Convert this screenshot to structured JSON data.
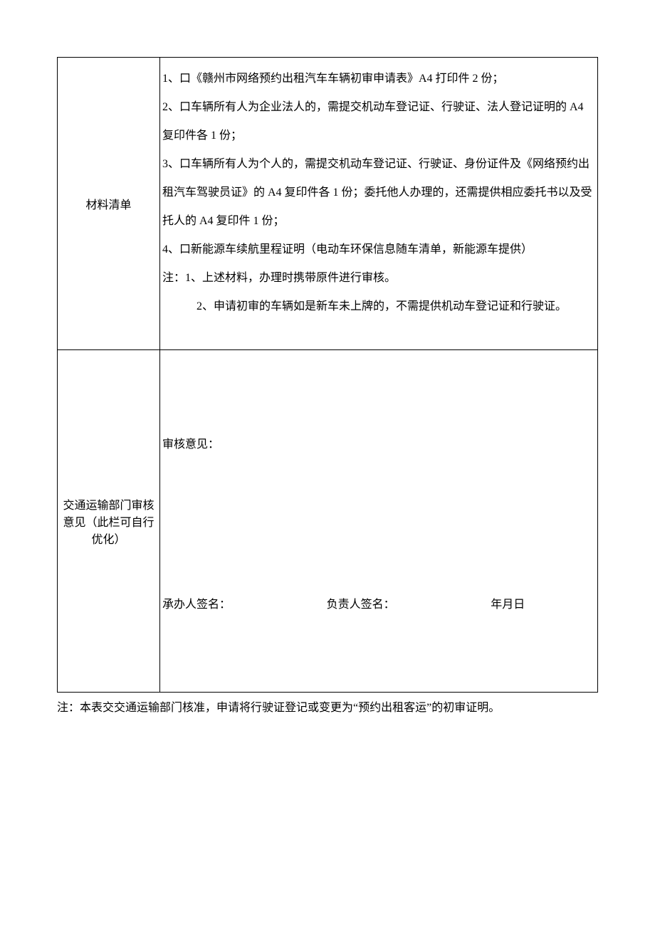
{
  "table": {
    "row1": {
      "label": "材料清单",
      "items": [
        "1、口《赣州市网络预约出租汽车车辆初审申请表》A4 打印件 2 份；",
        "2、口车辆所有人为企业法人的，需提交机动车登记证、行驶证、法人登记证明的 A4 复印件各 1 份；",
        "3、口车辆所有人为个人的，需提交机动车登记证、行驶证、身份证件及《网络预约出租汽车驾驶员证》的 A4 复印件各 1 份；委托他人办理的，还需提供相应委托书以及受托人的 A4 复印件 1 份；",
        "4、口新能源车续航里程证明（电动车环保信息随车清单，新能源车提供）"
      ],
      "note_prefix": "注：1、上述材料，办理时携带原件进行审核。",
      "note_line2": "2、申请初审的车辆如是新车未上牌的，不需提供机动车登记证和行驶证。"
    },
    "row2": {
      "label": "交通运输部门审核意见（此栏可自行优化）",
      "review_opinion_label": "审核意见：",
      "handler_sig": "承办人签名：",
      "responsible_sig": "负责人签名：",
      "date_label": "年月日"
    }
  },
  "footnote": "注：本表交交通运输部门核准，申请将行驶证登记或变更为“预约出租客运”的初审证明。"
}
